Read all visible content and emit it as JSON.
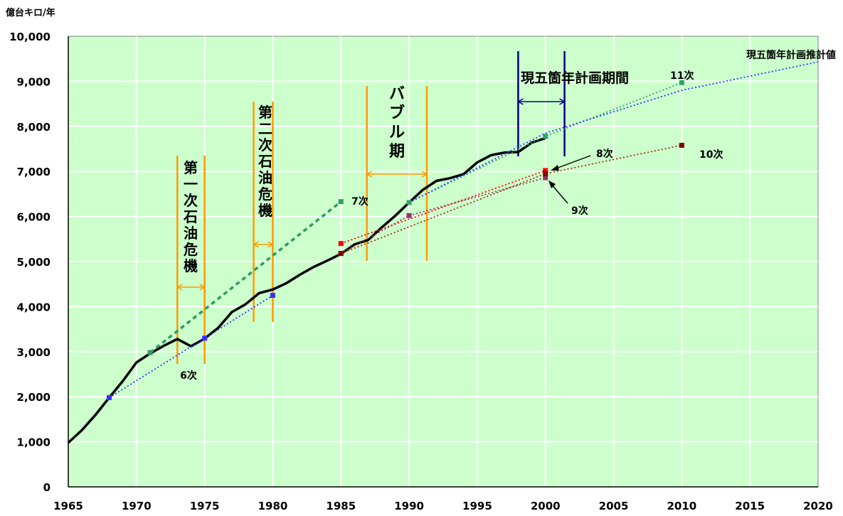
{
  "chart_data": {
    "type": "line",
    "ylabel": "億台キロ/年",
    "xlim": [
      1965,
      2020
    ],
    "ylim": [
      0,
      10000
    ],
    "x_ticks": [
      1965,
      1970,
      1975,
      1980,
      1985,
      1990,
      1995,
      2000,
      2005,
      2010,
      2015,
      2020
    ],
    "y_ticks": [
      0,
      1000,
      2000,
      3000,
      4000,
      5000,
      6000,
      7000,
      8000,
      9000,
      10000
    ],
    "y_tick_labels": [
      "0",
      "1,000",
      "2,000",
      "3,000",
      "4,000",
      "5,000",
      "6,000",
      "7,000",
      "8,000",
      "9,000",
      "10,000"
    ],
    "grid": true,
    "colors": {
      "plot_bg": "#ccffcc",
      "grid": "#ffffff",
      "actual": "#000000",
      "period_marker": "#ff9900",
      "current_plan_marker": "#000080"
    },
    "series": [
      {
        "key": "actual",
        "x": [
          1965,
          1966,
          1967,
          1968,
          1969,
          1970,
          1971,
          1972,
          1973,
          1974,
          1975,
          1976,
          1977,
          1978,
          1979,
          1980,
          1981,
          1982,
          1983,
          1984,
          1985,
          1986,
          1987,
          1988,
          1989,
          1990,
          1991,
          1992,
          1993,
          1994,
          1995,
          1996,
          1997,
          1998,
          1999,
          2000
        ],
        "y": [
          980,
          1260,
          1600,
          1980,
          2350,
          2760,
          2960,
          3130,
          3280,
          3120,
          3290,
          3530,
          3880,
          4050,
          4300,
          4380,
          4520,
          4710,
          4880,
          5020,
          5170,
          5380,
          5480,
          5760,
          6020,
          6310,
          6590,
          6790,
          6850,
          6940,
          7200,
          7360,
          7420,
          7430,
          7640,
          7740
        ],
        "color": "#000000",
        "style": "solid",
        "width": 3.5
      },
      {
        "key": "plan6",
        "x": [
          1968,
          1975,
          1980
        ],
        "y": [
          1980,
          3300,
          4250
        ],
        "color": "#3333ff",
        "style": "dotted",
        "width": 1.8,
        "marker_color": "#3333ff"
      },
      {
        "key": "plan7",
        "x": [
          1971,
          1985
        ],
        "y": [
          2980,
          6330
        ],
        "color": "#339966",
        "style": "dashed",
        "width": 3.5,
        "marker_color": "#339966"
      },
      {
        "key": "plan8",
        "x": [
          1985,
          2000
        ],
        "y": [
          5400,
          7020
        ],
        "color": "#ff0000",
        "style": "dotted",
        "width": 1.8,
        "marker_color": "#ff0000"
      },
      {
        "key": "plan9",
        "x": [
          1985,
          1990,
          2000
        ],
        "y": [
          5180,
          6020,
          6860
        ],
        "color": "#993366",
        "style": "dotted",
        "width": 1.8,
        "marker_color": "#993366"
      },
      {
        "key": "plan10",
        "x": [
          1985,
          2000,
          2010
        ],
        "y": [
          5180,
          6950,
          7580
        ],
        "color": "#993300",
        "style": "dotted",
        "width": 1.8,
        "marker_color": "#800000"
      },
      {
        "key": "plan11",
        "x": [
          1990,
          2000,
          2010
        ],
        "y": [
          6310,
          7780,
          8970
        ],
        "color": "#33a36a",
        "style": "dotted",
        "width": 1.8,
        "marker_color": "#33a36a"
      },
      {
        "key": "current_plan",
        "x": [
          1990,
          2000,
          2010,
          2020
        ],
        "y": [
          6310,
          7850,
          8800,
          9430
        ],
        "color": "#3333ff",
        "style": "dotted",
        "width": 1.8,
        "marker_color": null
      }
    ],
    "periods": [
      {
        "key": "oil1",
        "label": "第一次石油危機",
        "x0": 1973,
        "x1": 1975,
        "color": "#ff9900"
      },
      {
        "key": "oil2",
        "label": "第二次石油危機",
        "x0": 1978.6,
        "x1": 1980,
        "color": "#ff9900"
      },
      {
        "key": "bubble",
        "label": "バブル期",
        "x0": 1986.9,
        "x1": 1991.3,
        "color": "#ff9900"
      },
      {
        "key": "current",
        "label": "現五箇年計画期間",
        "x0": 1998,
        "x1": 2001.4,
        "color": "#000080"
      }
    ],
    "annotations": {
      "plan6": "6次",
      "plan7": "7次",
      "plan8": "8次",
      "plan9": "9次",
      "plan10": "10次",
      "plan11": "11次",
      "current_plan": "現五箇年計画推計値"
    }
  }
}
